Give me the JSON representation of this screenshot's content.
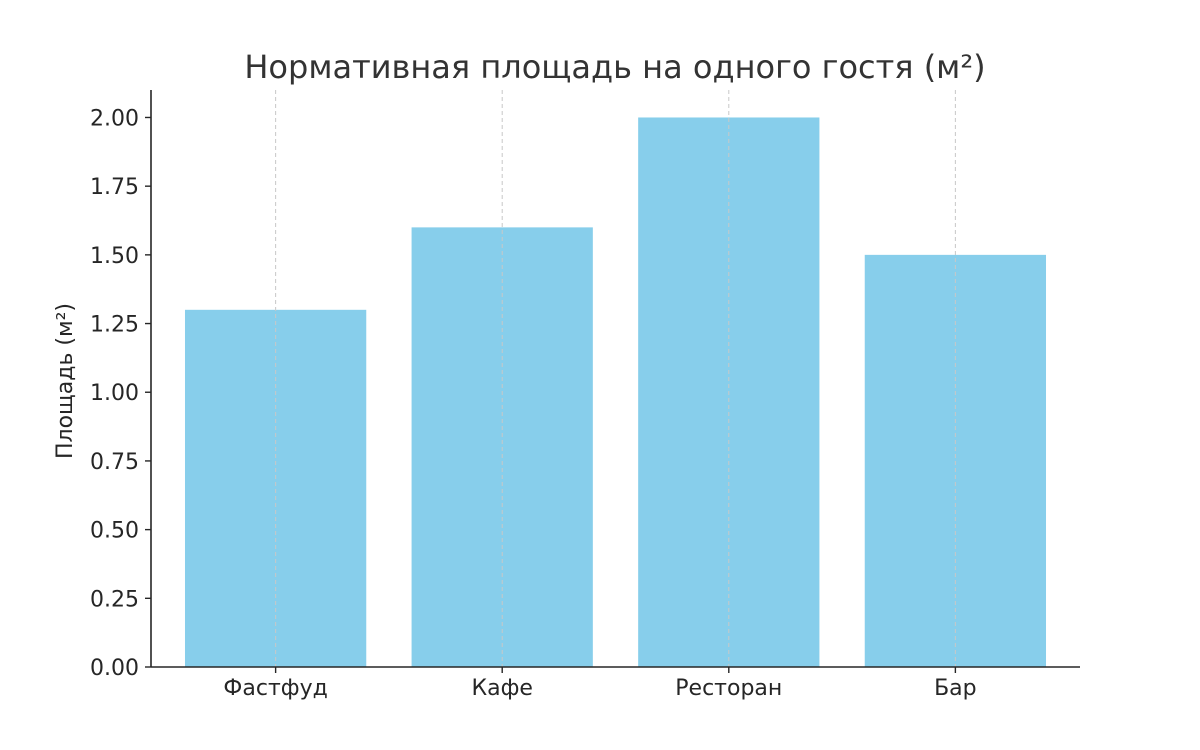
{
  "chart_data": {
    "type": "bar",
    "title": "Нормативная площадь на одного гостя (м²)",
    "xlabel": "",
    "ylabel": "Площадь (м²)",
    "categories": [
      "Фастфуд",
      "Кафе",
      "Ресторан",
      "Бар"
    ],
    "values": [
      1.3,
      1.6,
      2.0,
      1.5
    ],
    "ylim": [
      0,
      2.1
    ],
    "yticks": [
      "0.00",
      "0.25",
      "0.50",
      "0.75",
      "1.00",
      "1.25",
      "1.50",
      "1.75",
      "2.00"
    ],
    "grid": "vertical dashed lines at category centers",
    "bar_color": "#87CEEB",
    "legend": "none"
  }
}
